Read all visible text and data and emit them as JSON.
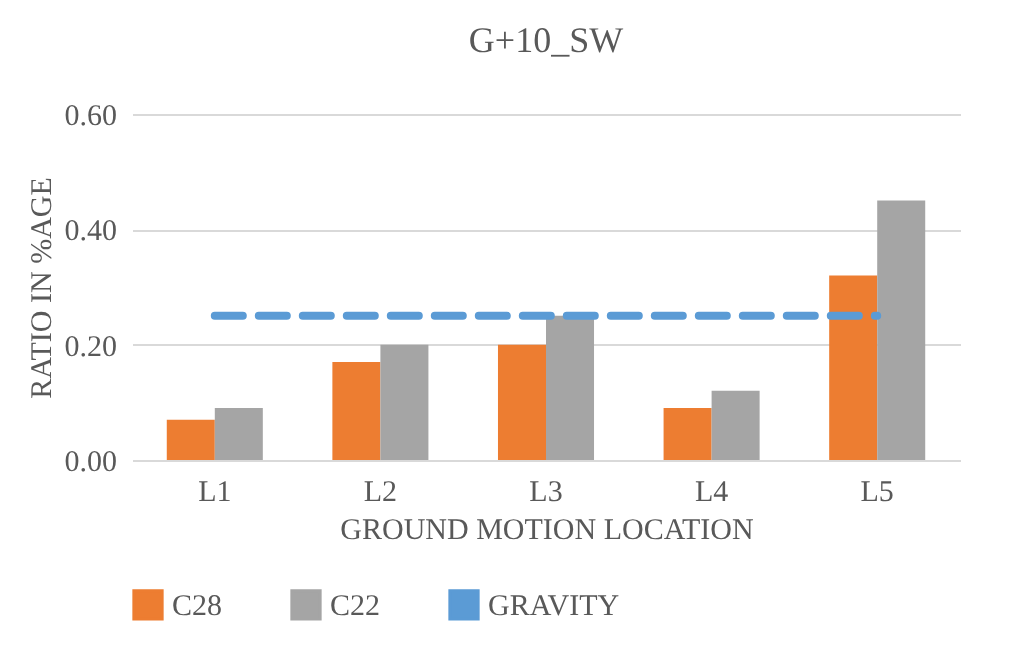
{
  "chart_data": {
    "type": "bar",
    "title": "G+10_SW",
    "xlabel": "GROUND MOTION LOCATION",
    "ylabel": "RATIO IN %AGE",
    "categories": [
      "L1",
      "L2",
      "L3",
      "L4",
      "L5"
    ],
    "series": [
      {
        "name": "C28",
        "color": "#ed7d31",
        "values": [
          0.07,
          0.17,
          0.2,
          0.09,
          0.32
        ]
      },
      {
        "name": "C22",
        "color": "#a5a5a5",
        "values": [
          0.09,
          0.2,
          0.25,
          0.12,
          0.45
        ]
      },
      {
        "name": "GRAVITY",
        "type": "line",
        "line_style": "dashed",
        "color": "#5b9bd5",
        "values": [
          0.25,
          0.25,
          0.25,
          0.25,
          0.25
        ]
      }
    ],
    "ylim": [
      0,
      0.6
    ],
    "yticks": [
      {
        "value": 0,
        "label": "0.00"
      },
      {
        "value": 0.2,
        "label": "0.20"
      },
      {
        "value": 0.4,
        "label": "0.40"
      },
      {
        "value": 0.6,
        "label": "0.60"
      }
    ],
    "grid": "y",
    "legend": "bottom"
  }
}
